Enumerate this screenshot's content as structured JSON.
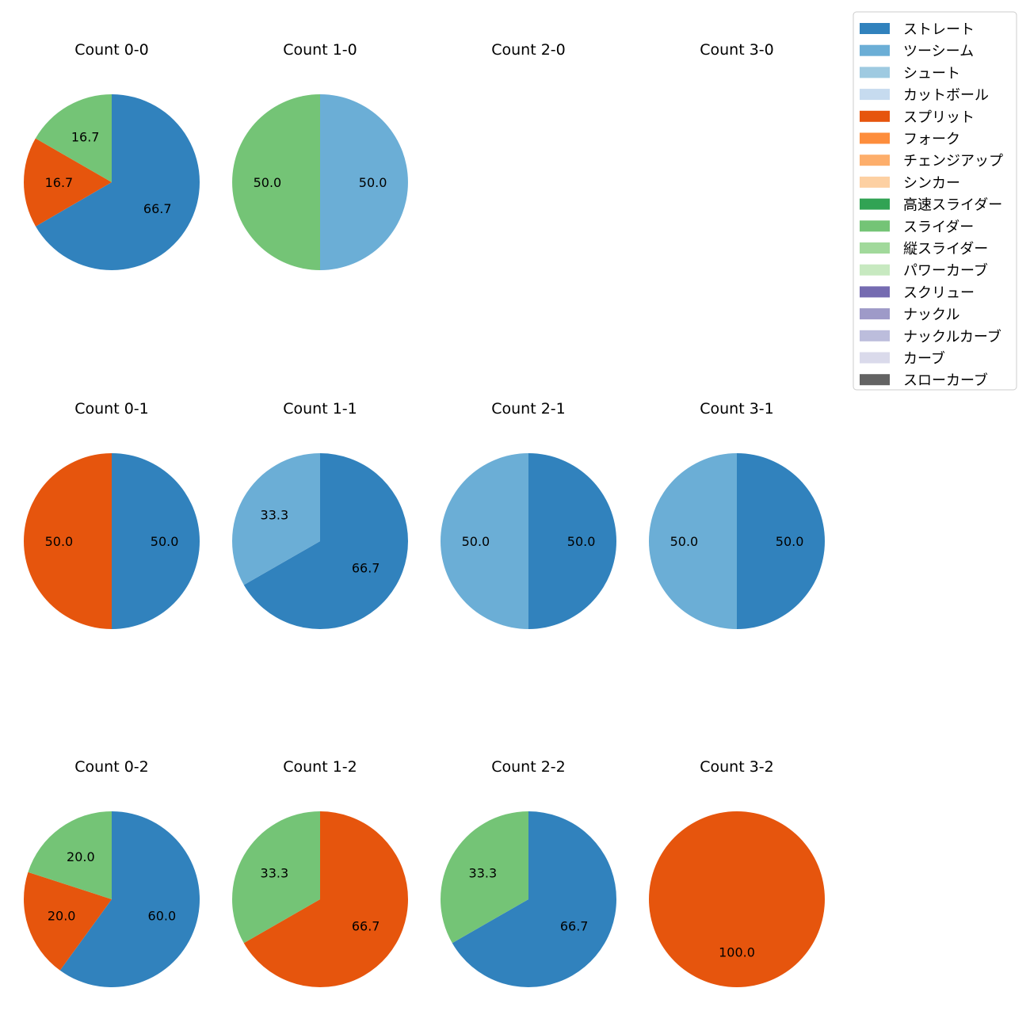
{
  "chart_data": {
    "type": "pie",
    "legend_position": "top-right",
    "categories": [
      "ストレート",
      "ツーシーム",
      "シュート",
      "カットボール",
      "スプリット",
      "フォーク",
      "チェンジアップ",
      "シンカー",
      "高速スライダー",
      "スライダー",
      "縦スライダー",
      "パワーカーブ",
      "スクリュー",
      "ナックル",
      "ナックルカーブ",
      "カーブ",
      "スローカーブ"
    ],
    "colors": [
      "#3182bd",
      "#6baed6",
      "#9ecae1",
      "#c6dbef",
      "#e6550d",
      "#fd8d3c",
      "#fdae6b",
      "#fdd0a2",
      "#31a354",
      "#74c476",
      "#a1d99b",
      "#c7e9c0",
      "#756bb1",
      "#9e9ac8",
      "#bcbddc",
      "#dadaeb",
      "#636363"
    ],
    "charts": [
      {
        "title": "Count 0-0",
        "slices": [
          {
            "category": "ストレート",
            "value": 66.7,
            "label": "66.7"
          },
          {
            "category": "スプリット",
            "value": 16.7,
            "label": "16.7"
          },
          {
            "category": "スライダー",
            "value": 16.7,
            "label": "16.7"
          }
        ]
      },
      {
        "title": "Count 1-0",
        "slices": [
          {
            "category": "ツーシーム",
            "value": 50.0,
            "label": "50.0"
          },
          {
            "category": "スライダー",
            "value": 50.0,
            "label": "50.0"
          }
        ]
      },
      {
        "title": "Count 2-0",
        "slices": []
      },
      {
        "title": "Count 3-0",
        "slices": []
      },
      {
        "title": "Count 0-1",
        "slices": [
          {
            "category": "ストレート",
            "value": 50.0,
            "label": "50.0"
          },
          {
            "category": "スプリット",
            "value": 50.0,
            "label": "50.0"
          }
        ]
      },
      {
        "title": "Count 1-1",
        "slices": [
          {
            "category": "ストレート",
            "value": 66.7,
            "label": "66.7"
          },
          {
            "category": "ツーシーム",
            "value": 33.3,
            "label": "33.3"
          }
        ]
      },
      {
        "title": "Count 2-1",
        "slices": [
          {
            "category": "ストレート",
            "value": 50.0,
            "label": "50.0"
          },
          {
            "category": "ツーシーム",
            "value": 50.0,
            "label": "50.0"
          }
        ]
      },
      {
        "title": "Count 3-1",
        "slices": [
          {
            "category": "ストレート",
            "value": 50.0,
            "label": "50.0"
          },
          {
            "category": "ツーシーム",
            "value": 50.0,
            "label": "50.0"
          }
        ]
      },
      {
        "title": "Count 0-2",
        "slices": [
          {
            "category": "ストレート",
            "value": 60.0,
            "label": "60.0"
          },
          {
            "category": "スプリット",
            "value": 20.0,
            "label": "20.0"
          },
          {
            "category": "スライダー",
            "value": 20.0,
            "label": "20.0"
          }
        ]
      },
      {
        "title": "Count 1-2",
        "slices": [
          {
            "category": "スプリット",
            "value": 66.7,
            "label": "66.7"
          },
          {
            "category": "スライダー",
            "value": 33.3,
            "label": "33.3"
          }
        ]
      },
      {
        "title": "Count 2-2",
        "slices": [
          {
            "category": "ストレート",
            "value": 66.7,
            "label": "66.7"
          },
          {
            "category": "スライダー",
            "value": 33.3,
            "label": "33.3"
          }
        ]
      },
      {
        "title": "Count 3-2",
        "slices": [
          {
            "category": "スプリット",
            "value": 100.0,
            "label": "100.0"
          }
        ]
      }
    ]
  }
}
